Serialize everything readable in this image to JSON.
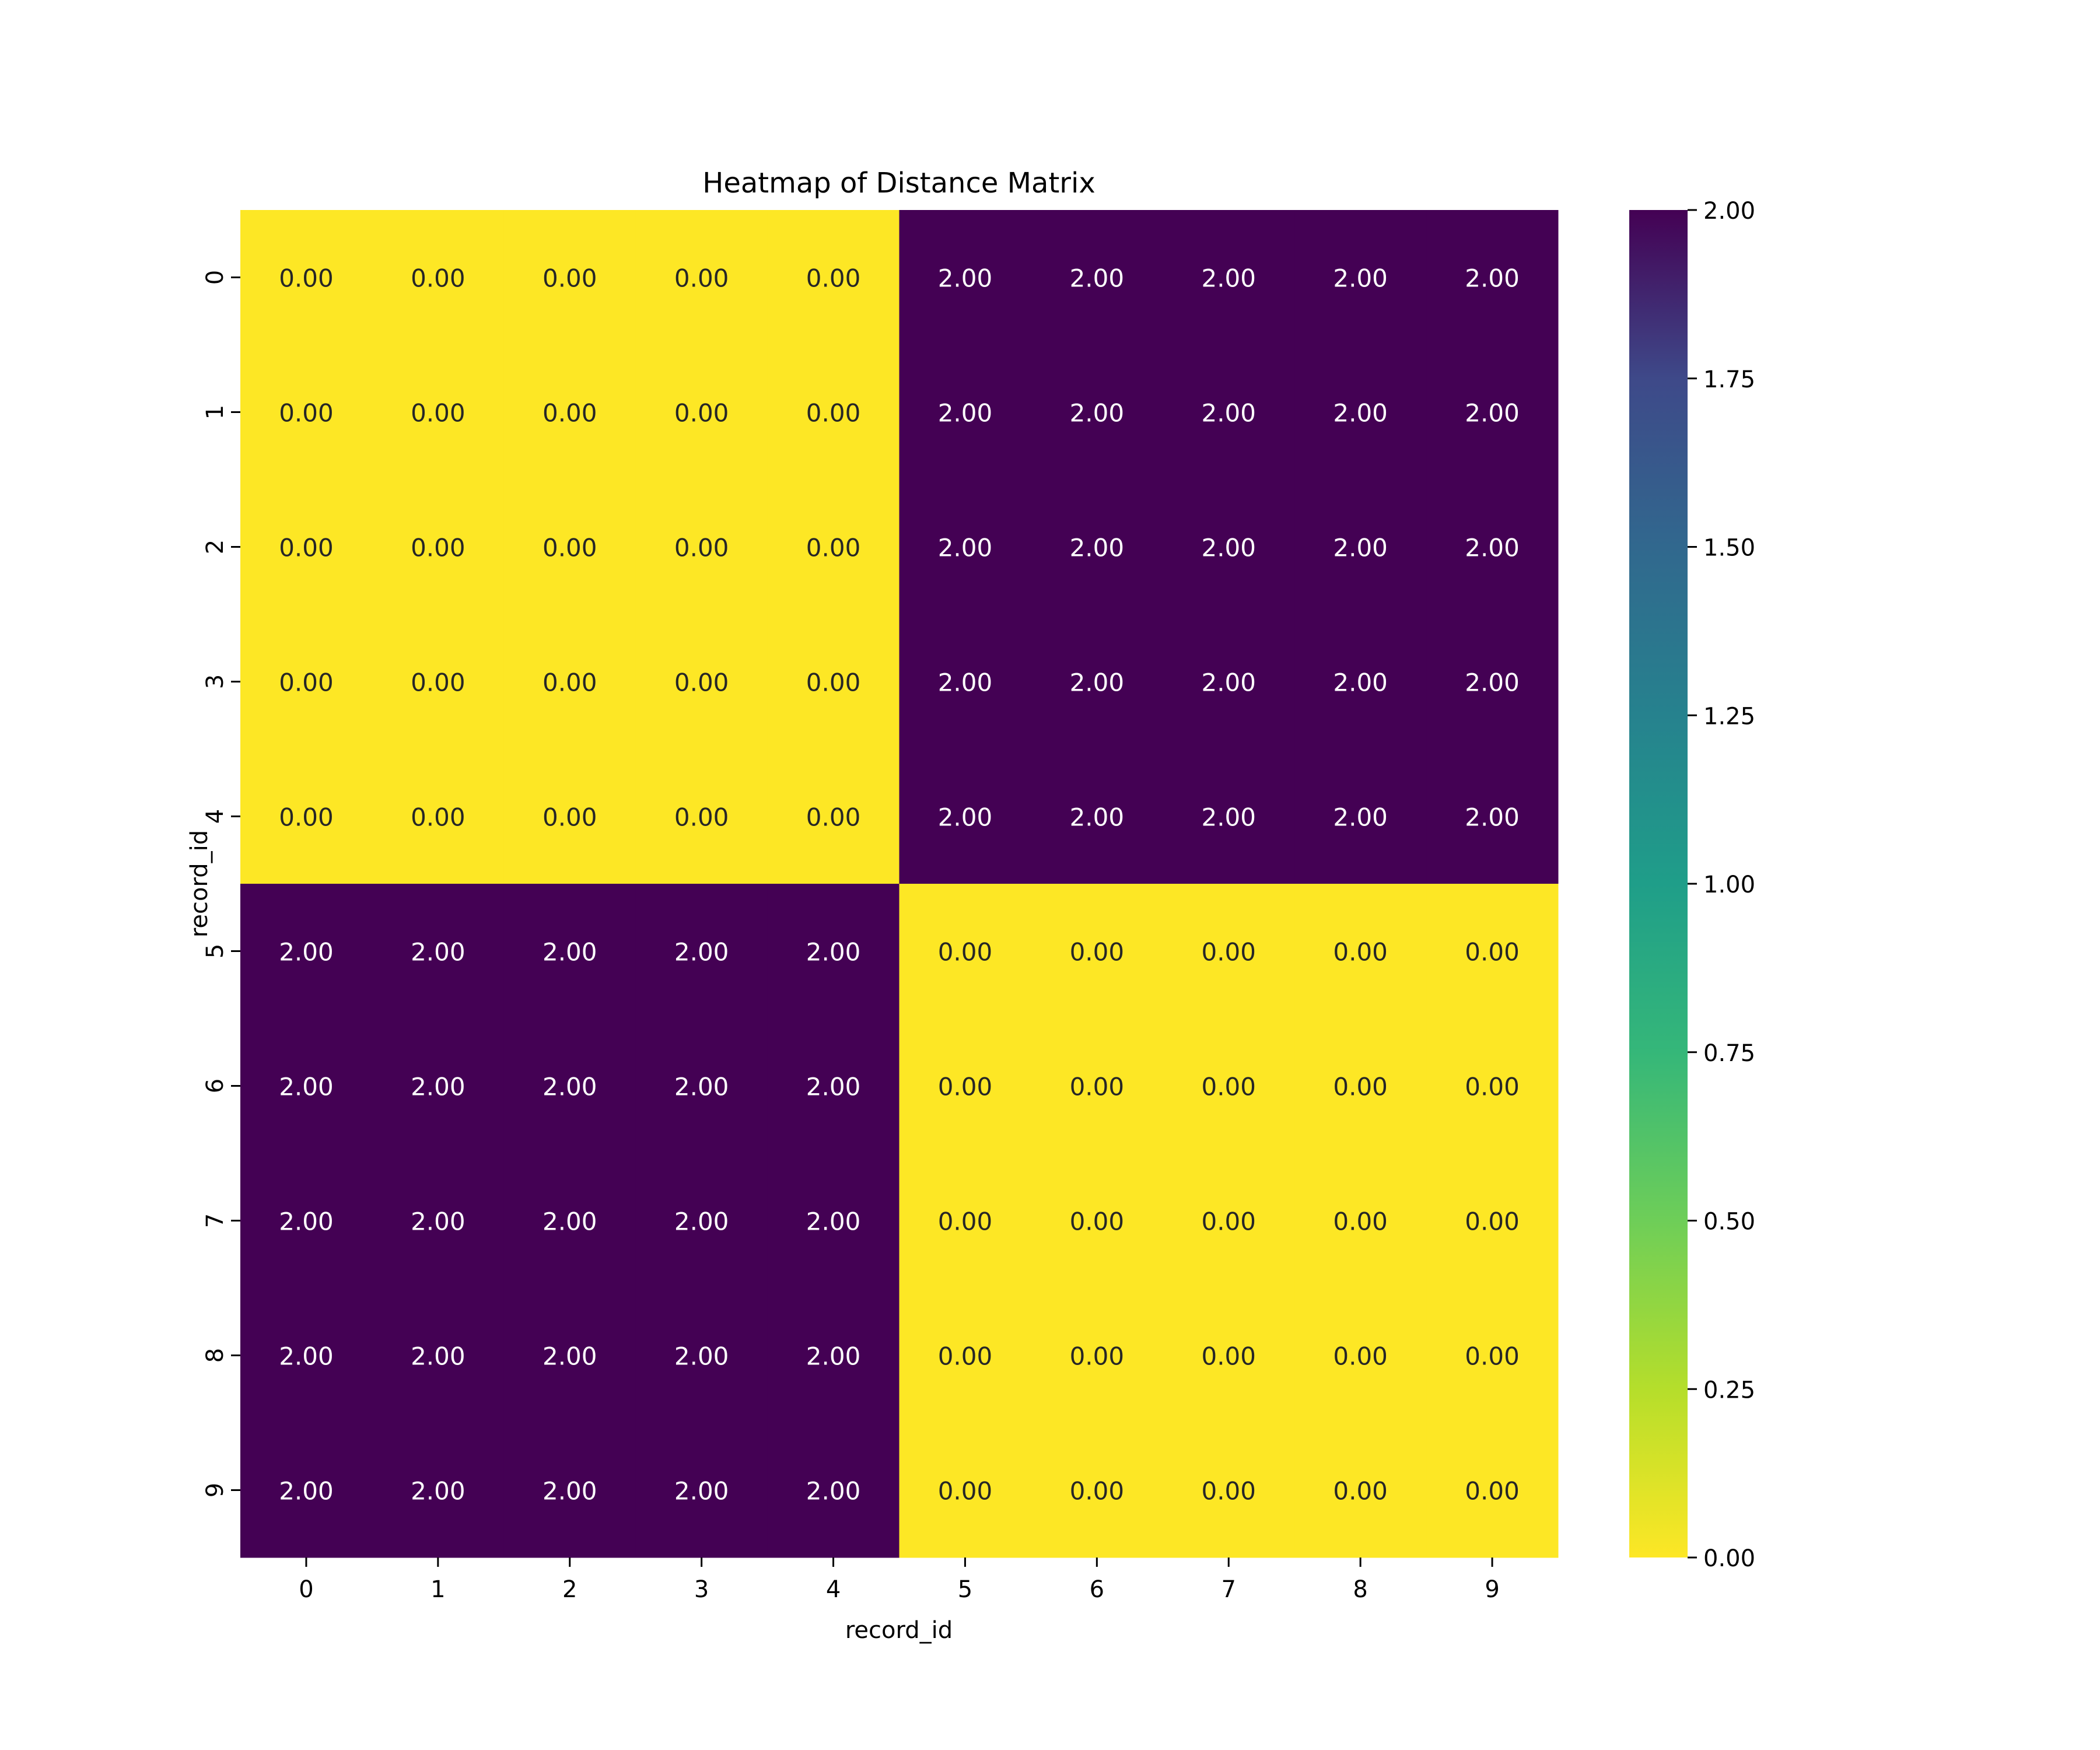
{
  "chart_data": {
    "type": "heatmap",
    "title": "Heatmap of Distance Matrix",
    "xlabel": "record_id",
    "ylabel": "record_id",
    "x_categories": [
      "0",
      "1",
      "2",
      "3",
      "4",
      "5",
      "6",
      "7",
      "8",
      "9"
    ],
    "y_categories": [
      "0",
      "1",
      "2",
      "3",
      "4",
      "5",
      "6",
      "7",
      "8",
      "9"
    ],
    "values": [
      [
        0,
        0,
        0,
        0,
        0,
        2,
        2,
        2,
        2,
        2
      ],
      [
        0,
        0,
        0,
        0,
        0,
        2,
        2,
        2,
        2,
        2
      ],
      [
        0,
        0,
        0,
        0,
        0,
        2,
        2,
        2,
        2,
        2
      ],
      [
        0,
        0,
        0,
        0,
        0,
        2,
        2,
        2,
        2,
        2
      ],
      [
        0,
        0,
        0,
        0,
        0,
        2,
        2,
        2,
        2,
        2
      ],
      [
        2,
        2,
        2,
        2,
        2,
        0,
        0,
        0,
        0,
        0
      ],
      [
        2,
        2,
        2,
        2,
        2,
        0,
        0,
        0,
        0,
        0
      ],
      [
        2,
        2,
        2,
        2,
        2,
        0,
        0,
        0,
        0,
        0
      ],
      [
        2,
        2,
        2,
        2,
        2,
        0,
        0,
        0,
        0,
        0
      ],
      [
        2,
        2,
        2,
        2,
        2,
        0,
        0,
        0,
        0,
        0
      ]
    ],
    "annotation_format": "0.00",
    "colormap": "viridis_r",
    "vmin": 0,
    "vmax": 2,
    "colorbar": {
      "ticks": [
        "0.00",
        "0.25",
        "0.50",
        "0.75",
        "1.00",
        "1.25",
        "1.50",
        "1.75",
        "2.00"
      ],
      "placement": "right"
    },
    "colors": {
      "low": "#fde725",
      "high": "#440154"
    }
  }
}
